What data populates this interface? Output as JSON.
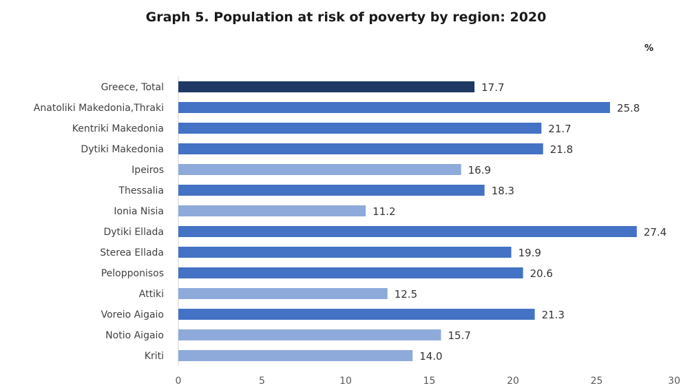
{
  "chart_data": {
    "type": "bar",
    "orientation": "horizontal",
    "title": "Graph 5. Population at risk of poverty by region: 2020",
    "unit": "%",
    "categories": [
      "Greece, Total",
      "Anatoliki Makedonia,Thraki",
      "Kentriki Makedonia",
      "Dytiki Makedonia",
      "Ipeiros",
      "Thessalia",
      "Ionia Nisia",
      "Dytiki Ellada",
      "Sterea Ellada",
      "Pelopponisos",
      "Attiki",
      "Voreio Aigaio",
      "Notio Aigaio",
      "Kriti"
    ],
    "values": [
      17.7,
      25.8,
      21.7,
      21.8,
      16.9,
      18.3,
      11.2,
      27.4,
      19.9,
      20.6,
      12.5,
      21.3,
      15.7,
      14.0
    ],
    "value_labels": [
      "17.7",
      "25.8",
      "21.7",
      "21.8",
      "16.9",
      "18.3",
      "11.2",
      "27.4",
      "19.9",
      "20.6",
      "12.5",
      "21.3",
      "15.7",
      "14.0"
    ],
    "xlim": [
      0,
      30
    ],
    "xticks": [
      0,
      5,
      10,
      15,
      20,
      25,
      30
    ],
    "grid": false,
    "legend": "none",
    "colors": {
      "total": "#1f3864",
      "above_total": "#4472c4",
      "below_total": "#8eaadb"
    }
  }
}
